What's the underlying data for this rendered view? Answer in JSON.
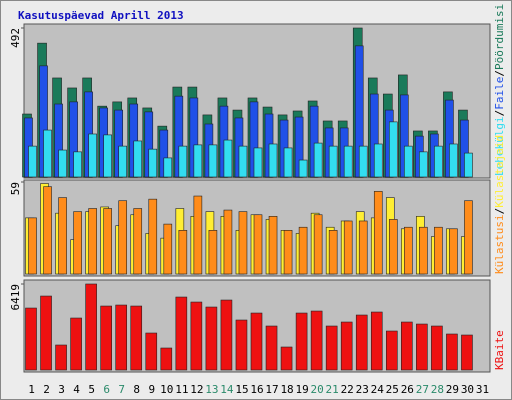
{
  "title": "Kasutuspäevad Aprill 2013",
  "legend_separator": "/",
  "chart_data": [
    {
      "type": "bar",
      "ylim": [
        0,
        492
      ],
      "yticks": [
        492
      ],
      "series": [
        {
          "name": "Pöördumisi",
          "color": "#1a7a5a",
          "values": [
            208,
            442,
            327,
            294,
            327,
            234,
            248,
            261,
            228,
            168,
            297,
            297,
            205,
            261,
            221,
            261,
            231,
            205,
            218,
            251,
            185,
            185,
            492,
            327,
            274,
            337,
            152,
            152,
            281,
            221,
            null
          ]
        },
        {
          "name": "Faile",
          "color": "#2050e8",
          "values": [
            195,
            367,
            241,
            248,
            281,
            228,
            221,
            241,
            215,
            155,
            267,
            261,
            175,
            234,
            195,
            248,
            208,
            188,
            198,
            234,
            162,
            162,
            433,
            274,
            221,
            271,
            135,
            142,
            254,
            188,
            null
          ]
        },
        {
          "name": "Lehekülgi",
          "color": "#33ddf0",
          "values": [
            102,
            155,
            89,
            83,
            142,
            139,
            102,
            119,
            92,
            63,
            102,
            106,
            106,
            122,
            102,
            96,
            109,
            96,
            56,
            112,
            102,
            102,
            102,
            109,
            182,
            102,
            83,
            102,
            109,
            79,
            null
          ]
        }
      ]
    },
    {
      "type": "bar",
      "ylim": [
        0,
        59
      ],
      "yticks": [
        59
      ],
      "series": [
        {
          "name": "Külastajaid",
          "color": "#ffee33",
          "values": [
            36,
            58,
            39,
            22,
            40,
            43,
            31,
            38,
            26,
            23,
            42,
            37,
            40,
            37,
            28,
            38,
            35,
            28,
            26,
            39,
            30,
            34,
            40,
            36,
            49,
            29,
            37,
            24,
            29,
            24,
            null
          ]
        },
        {
          "name": "Külastusi",
          "color": "#ff8c1a",
          "values": [
            36,
            56,
            49,
            40,
            42,
            42,
            47,
            42,
            48,
            32,
            28,
            50,
            28,
            41,
            40,
            38,
            37,
            28,
            30,
            38,
            28,
            34,
            34,
            53,
            35,
            30,
            30,
            30,
            29,
            47,
            null
          ]
        }
      ]
    },
    {
      "type": "bar",
      "ylim": [
        0,
        6419
      ],
      "yticks": [
        6419
      ],
      "categories": [
        "1",
        "2",
        "3",
        "4",
        "5",
        "6",
        "7",
        "8",
        "9",
        "10",
        "11",
        "12",
        "13",
        "14",
        "15",
        "16",
        "17",
        "18",
        "19",
        "20",
        "21",
        "22",
        "23",
        "24",
        "25",
        "26",
        "27",
        "28",
        "29",
        "30",
        "31"
      ],
      "category_colors": [
        "#000000",
        "#000000",
        "#000000",
        "#000000",
        "#000000",
        "#2a8a6a",
        "#2a8a6a",
        "#000000",
        "#000000",
        "#000000",
        "#000000",
        "#000000",
        "#2a8a6a",
        "#2a8a6a",
        "#000000",
        "#000000",
        "#000000",
        "#000000",
        "#000000",
        "#2a8a6a",
        "#2a8a6a",
        "#000000",
        "#000000",
        "#000000",
        "#000000",
        "#000000",
        "#2a8a6a",
        "#2a8a6a",
        "#000000",
        "#000000",
        "#000000"
      ],
      "series": [
        {
          "name": "KBaite",
          "color": "#ee1111",
          "values": [
            4625,
            5520,
            1865,
            3879,
            6419,
            4774,
            4849,
            4774,
            2760,
            1641,
            5446,
            5073,
            4700,
            5222,
            3730,
            4252,
            3282,
            1716,
            4252,
            4401,
            3282,
            3581,
            4103,
            4327,
            2909,
            3581,
            3431,
            3282,
            2686,
            2611,
            null
          ]
        }
      ]
    }
  ]
}
